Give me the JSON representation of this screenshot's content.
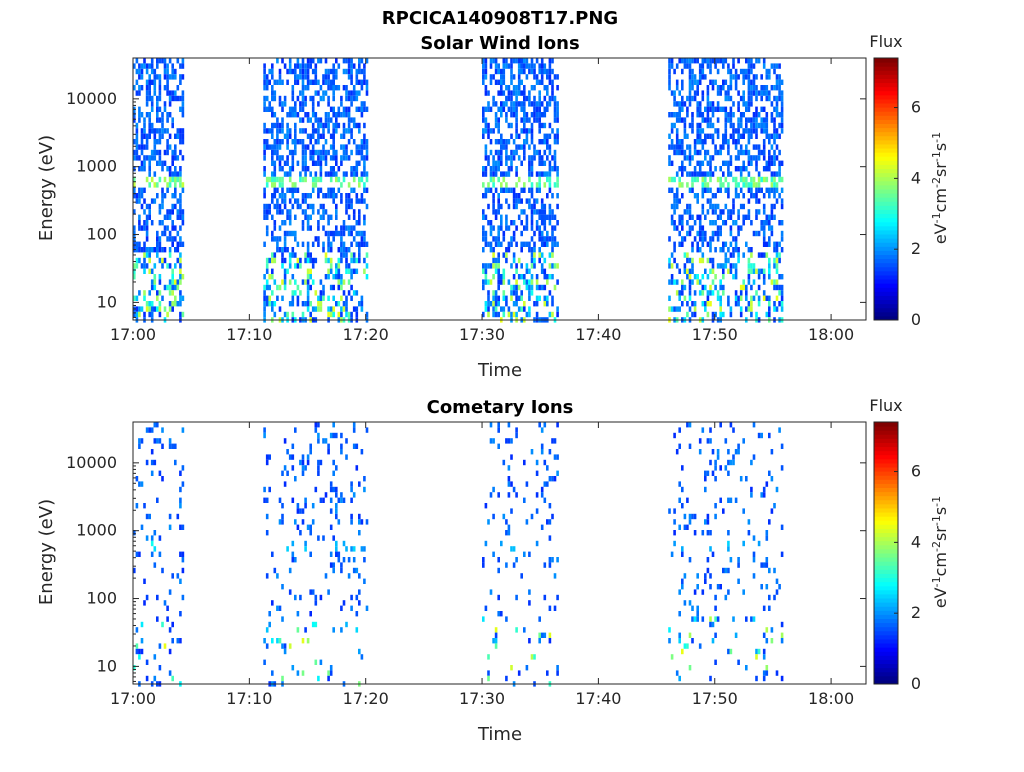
{
  "figure_title": "RPCICA140908T17.PNG",
  "chart_data": [
    {
      "type": "heatmap",
      "title": "Solar Wind Ions",
      "xlabel": "Time",
      "ylabel": "Energy (eV)",
      "x_ticks": [
        "17:00",
        "17:10",
        "17:20",
        "17:30",
        "17:40",
        "17:50",
        "18:00"
      ],
      "x_range_minutes": [
        0,
        63
      ],
      "y_ticks": [
        "10",
        "100",
        "1000",
        "10000"
      ],
      "y_range": [
        5.5,
        40000
      ],
      "y_scale": "log",
      "colorbar": {
        "title": "Flux",
        "label": "eV-1cm-2sr-1s-1",
        "ticks": [
          "0",
          "2",
          "4",
          "6"
        ],
        "range": [
          0,
          7.4
        ],
        "colormap": "jet"
      },
      "bursts": [
        {
          "start_min": 0.0,
          "end_min": 4.5,
          "peak_energy_ev": 620,
          "peak_flux": 4.2
        },
        {
          "start_min": 11.2,
          "end_min": 20.3,
          "peak_energy_ev": 620,
          "peak_flux": 4.0
        },
        {
          "start_min": 30.0,
          "end_min": 36.5,
          "peak_energy_ev": 620,
          "peak_flux": 4.0
        },
        {
          "start_min": 46.0,
          "end_min": 56.0,
          "peak_energy_ev": 620,
          "peak_flux": 4.0
        }
      ]
    },
    {
      "type": "heatmap",
      "title": "Cometary Ions",
      "xlabel": "Time",
      "ylabel": "Energy (eV)",
      "x_ticks": [
        "17:00",
        "17:10",
        "17:20",
        "17:30",
        "17:40",
        "17:50",
        "18:00"
      ],
      "x_range_minutes": [
        0,
        63
      ],
      "y_ticks": [
        "10",
        "100",
        "1000",
        "10000"
      ],
      "y_range": [
        5.5,
        40000
      ],
      "y_scale": "log",
      "colorbar": {
        "title": "Flux",
        "label": "eV-1cm-2sr-1s-1",
        "ticks": [
          "0",
          "2",
          "4",
          "6"
        ],
        "range": [
          0,
          7.4
        ],
        "colormap": "jet"
      },
      "bursts": [
        {
          "start_min": 0.0,
          "end_min": 4.5,
          "peak_energy_ev": 620,
          "peak_flux": 3.0
        },
        {
          "start_min": 11.2,
          "end_min": 20.3,
          "peak_energy_ev": 620,
          "peak_flux": 2.5
        },
        {
          "start_min": 30.0,
          "end_min": 36.5,
          "peak_energy_ev": 620,
          "peak_flux": 2.5
        },
        {
          "start_min": 46.0,
          "end_min": 56.0,
          "peak_energy_ev": 620,
          "peak_flux": 2.5
        }
      ]
    }
  ]
}
